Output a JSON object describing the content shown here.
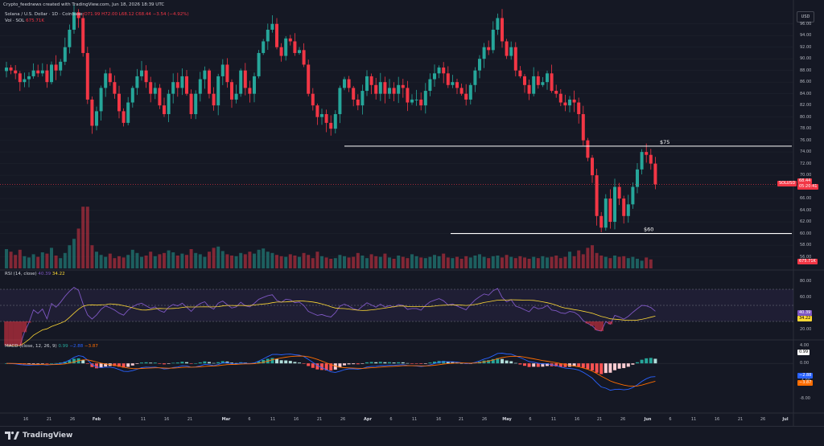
{
  "header": {
    "credit": "Crypto_feednews created with TradingView.com, Jun 18, 2026 18:39 UTC",
    "symbol_line": "Solana / U.S. Dollar · 1D · Coinbase",
    "ohlc": "O71.99 H72.00 L68.12 C68.44",
    "change": "−3.54 (−4.92%)",
    "volume_line": "Vol · SOL",
    "volume_value": "675.71K",
    "currency_button": "USD"
  },
  "footer": {
    "brand": "TradingView"
  },
  "chart_data": [
    {
      "type": "candlestick",
      "title": "Solana / U.S. Dollar · 1D · Coinbase",
      "ylim": [
        54,
        99
      ],
      "y_ticks": [
        56,
        58,
        60,
        62,
        64,
        66,
        68,
        70,
        72,
        74,
        76,
        78,
        80,
        82,
        84,
        86,
        88,
        90,
        92,
        94,
        96
      ],
      "x_labels": [
        "16",
        "21",
        "26",
        "Feb",
        "6",
        "11",
        "16",
        "21",
        "Mar",
        "6",
        "11",
        "16",
        "21",
        "26",
        "Apr",
        "6",
        "11",
        "16",
        "21",
        "26",
        "May",
        "6",
        "11",
        "16",
        "21",
        "26",
        "Jun",
        "6",
        "11",
        "16",
        "21",
        "26",
        "Jul"
      ],
      "annotations": [
        {
          "label": "$75",
          "price": 75
        },
        {
          "label": "$60",
          "price": 60
        }
      ],
      "last_price_tag": {
        "symbol": "SOLUSD",
        "price": "68.44",
        "countdown": "05:20:41"
      },
      "volume_tag": "675.71K",
      "series": [
        {
          "name": "SOLUSD",
          "closes": [
            88.5,
            88,
            87.5,
            86,
            86.5,
            87,
            88,
            87.5,
            88,
            86,
            89,
            88,
            89.5,
            92,
            95,
            98,
            97,
            91,
            83,
            78.5,
            81,
            85,
            87.5,
            86,
            84,
            81,
            79,
            82.5,
            85,
            87,
            88,
            86,
            84,
            85,
            82,
            80.5,
            84,
            86,
            85,
            87,
            84,
            80.5,
            84,
            86.5,
            88,
            84,
            82,
            87,
            89,
            86,
            83,
            84,
            88,
            85,
            84,
            87,
            91,
            93,
            95,
            96,
            92,
            90.5,
            93.5,
            93,
            91,
            91.5,
            89,
            84,
            82,
            80,
            80.5,
            79,
            78,
            80.5,
            85,
            86.5,
            85,
            83,
            82,
            84.5,
            87,
            85.5,
            84,
            86,
            84,
            85,
            84,
            85.5,
            85,
            82.5,
            83,
            83,
            82,
            84.5,
            86.5,
            87.5,
            88.5,
            87.5,
            85.5,
            86,
            85,
            84,
            83,
            85.5,
            88,
            90,
            92,
            91.5,
            95,
            97,
            93,
            90.5,
            92,
            88,
            87,
            85.5,
            84,
            87,
            85.5,
            86,
            87.5,
            84.5,
            84,
            82.5,
            82,
            83,
            82.5,
            80.5,
            76,
            73,
            70,
            63,
            61,
            66,
            62,
            68,
            66,
            63,
            65,
            68,
            71,
            74,
            73.5,
            72,
            68.44
          ]
        }
      ],
      "volume": [
        3.0,
        2.6,
        2.1,
        2.9,
        1.9,
        1.7,
        2.2,
        1.8,
        2.5,
        2.3,
        3.2,
        2.0,
        1.6,
        2.4,
        3.6,
        4.6,
        6.2,
        9.6,
        9.6,
        3.6,
        2.6,
        2.1,
        1.8,
        2.3,
        1.6,
        1.9,
        1.7,
        2.1,
        2.9,
        2.4,
        1.8,
        2.0,
        2.6,
        1.9,
        2.2,
        2.4,
        2.8,
        2.5,
        2.0,
        2.3,
        2.1,
        3.0,
        2.4,
        2.2,
        1.8,
        2.6,
        3.2,
        3.4,
        2.7,
        2.2,
        2.0,
        1.9,
        2.4,
        2.2,
        2.6,
        2.3,
        2.9,
        3.1,
        2.6,
        2.4,
        2.1,
        1.9,
        1.8,
        2.2,
        2.0,
        1.8,
        2.4,
        2.1,
        1.6,
        2.6,
        1.9,
        1.7,
        1.5,
        1.6,
        2.1,
        1.9,
        1.7,
        1.8,
        2.4,
        2.0,
        1.6,
        2.2,
        1.9,
        1.8,
        2.3,
        1.7,
        1.5,
        2.0,
        1.8,
        1.6,
        2.2,
        1.9,
        1.7,
        1.6,
        1.8,
        2.1,
        1.9,
        2.3,
        1.7,
        1.6,
        1.8,
        1.5,
        1.9,
        1.7,
        2.0,
        2.2,
        1.8,
        1.6,
        1.9,
        2.0,
        1.7,
        2.1,
        1.8,
        1.6,
        1.9,
        1.7,
        1.5,
        1.8,
        1.6,
        1.9,
        1.7,
        1.8,
        2.0,
        1.6,
        1.8,
        2.6,
        1.9,
        2.8,
        2.2,
        3.2,
        3.6,
        2.4,
        2.0,
        1.8,
        1.6,
        2.0,
        1.8,
        1.9,
        1.6,
        1.8,
        1.5,
        1.2,
        1.7,
        1.4
      ]
    },
    {
      "type": "line",
      "title": "RSI (14, close)",
      "values_text": [
        "40.39",
        "34.22"
      ],
      "ylim": [
        10,
        90
      ],
      "y_ticks": [
        20,
        40,
        60,
        80
      ],
      "band": [
        30,
        70
      ],
      "series": [
        {
          "name": "RSI"
        },
        {
          "name": "RSI MA"
        }
      ],
      "last": [
        40.39,
        34.22
      ]
    },
    {
      "type": "bar",
      "title": "MACD (close, 12, 26, 9)",
      "values_text": [
        "0.99",
        "−2.88",
        "−3.87"
      ],
      "ylim": [
        -11,
        5
      ],
      "y_ticks": [
        4.0,
        0.0,
        -4.0,
        -8.0
      ],
      "series": [
        {
          "name": "Histogram"
        },
        {
          "name": "MACD"
        },
        {
          "name": "Signal"
        }
      ],
      "last": [
        0.99,
        -2.88,
        -3.87
      ]
    }
  ]
}
